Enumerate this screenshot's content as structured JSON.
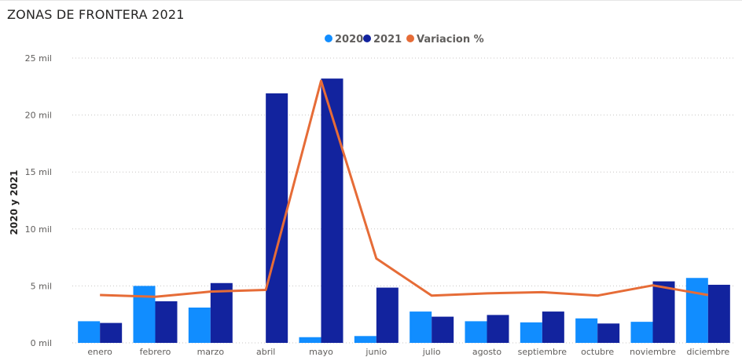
{
  "title": "ZONAS DE FRONTERA 2021",
  "chart_data": {
    "type": "bar",
    "categories": [
      "enero",
      "febrero",
      "marzo",
      "abril",
      "mayo",
      "junio",
      "julio",
      "agosto",
      "septiembre",
      "octubre",
      "noviembre",
      "diciembre"
    ],
    "series": [
      {
        "name": "2020",
        "type": "bar",
        "color": "#118DFF",
        "values": [
          1900,
          5000,
          3100,
          0,
          500,
          600,
          2750,
          1900,
          1800,
          2150,
          1850,
          5700
        ]
      },
      {
        "name": "2021",
        "type": "bar",
        "color": "#12239E",
        "values": [
          1750,
          3650,
          5250,
          21900,
          23200,
          4850,
          2300,
          2450,
          2750,
          1700,
          5400,
          5100
        ]
      },
      {
        "name": "Variacion %",
        "type": "line",
        "color": "#E66C37",
        "values": [
          4200,
          4050,
          4500,
          4650,
          23000,
          7400,
          4150,
          4350,
          4450,
          4150,
          5050,
          4200
        ]
      }
    ],
    "ylabel": "2020 y 2021",
    "ylim": [
      0,
      25000
    ],
    "yticks": [
      0,
      5000,
      10000,
      15000,
      20000,
      25000
    ],
    "ytick_labels": [
      "0 mil",
      "5 mil",
      "10 mil",
      "15 mil",
      "20 mil",
      "25 mil"
    ],
    "legend_position": "top-center",
    "grid": true
  }
}
